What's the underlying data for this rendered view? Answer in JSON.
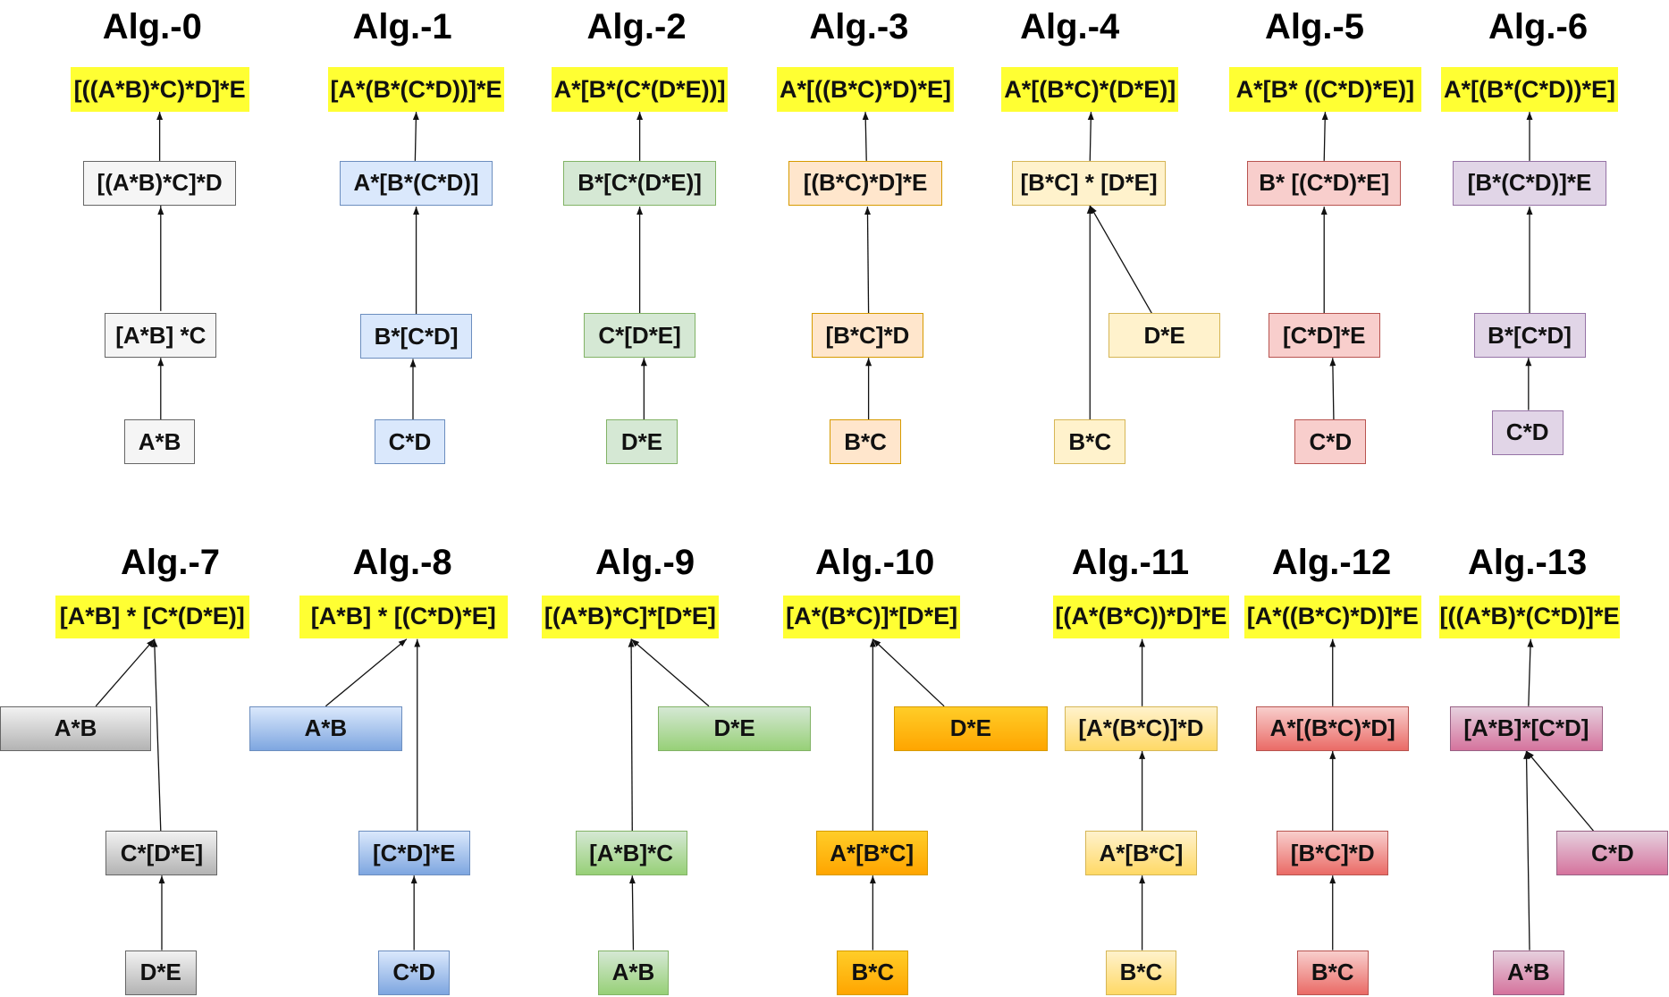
{
  "columns": [
    {
      "title": "Alg.-0",
      "nodes": [
        "[((A*B)*C)*D]*E",
        "[(A*B)*C]*D",
        "[A*B] *C",
        "A*B"
      ],
      "color": "#f5f5f5"
    },
    {
      "title": "Alg.-1",
      "nodes": [
        "[A*(B*(C*D))]*E",
        "A*[B*(C*D)]",
        "B*[C*D]",
        "C*D"
      ],
      "color": "#dae8fc"
    },
    {
      "title": "Alg.-2",
      "nodes": [
        "A*[B*(C*(D*E))]",
        "B*[C*(D*E)]",
        "C*[D*E]",
        "D*E"
      ],
      "color": "#d5e8d4"
    },
    {
      "title": "Alg.-3",
      "nodes": [
        "A*[((B*C)*D)*E]",
        "[(B*C)*D]*E",
        "[B*C]*D",
        "B*C"
      ],
      "color": "#ffe6cc"
    },
    {
      "title": "Alg.-4",
      "nodes": [
        "A*[(B*C)*(D*E)]",
        "[B*C] * [D*E]",
        "D*E",
        "B*C"
      ],
      "color": "#fff2cc"
    },
    {
      "title": "Alg.-5",
      "nodes": [
        "A*[B* ((C*D)*E)]",
        "B* [(C*D)*E]",
        "[C*D]*E",
        "C*D"
      ],
      "color": "#f8cecc"
    },
    {
      "title": "Alg.-6",
      "nodes": [
        "A*[(B*(C*D))*E]",
        "[B*(C*D)]*E",
        "B*[C*D]",
        "C*D"
      ],
      "color": "#e1d5e7"
    },
    {
      "title": "Alg.-7",
      "nodes": [
        "[A*B] * [C*(D*E)]",
        "A*B",
        "C*[D*E]",
        "D*E"
      ],
      "color": "gray"
    },
    {
      "title": "Alg.-8",
      "nodes": [
        "[A*B] * [(C*D)*E]",
        "A*B",
        "[C*D]*E",
        "C*D"
      ],
      "color": "blue"
    },
    {
      "title": "Alg.-9",
      "nodes": [
        "[(A*B)*C]*[D*E]",
        "D*E",
        "[A*B]*C",
        "A*B"
      ],
      "color": "green"
    },
    {
      "title": "Alg.-10",
      "nodes": [
        "[A*(B*C)]*[D*E]",
        "D*E",
        "A*[B*C]",
        "B*C"
      ],
      "color": "orange"
    },
    {
      "title": "Alg.-11",
      "nodes": [
        "[(A*(B*C))*D]*E",
        "[A*(B*C)]*D",
        "A*[B*C]",
        "B*C"
      ],
      "color": "yellow"
    },
    {
      "title": "Alg.-12",
      "nodes": [
        "[A*((B*C)*D)]*E",
        "A*[(B*C)*D]",
        "[B*C]*D",
        "B*C"
      ],
      "color": "red"
    },
    {
      "title": "Alg.-13",
      "nodes": [
        "[((A*B)*(C*D)]*E",
        "[A*B]*[C*D]",
        "C*D",
        "A*B"
      ],
      "color": "pink"
    }
  ]
}
